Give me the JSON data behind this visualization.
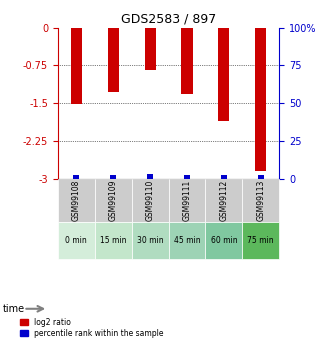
{
  "title": "GDS2583 / 897",
  "samples": [
    "GSM99108",
    "GSM99109",
    "GSM99110",
    "GSM99111",
    "GSM99112",
    "GSM99113"
  ],
  "time_labels": [
    "0 min",
    "15 min",
    "30 min",
    "45 min",
    "60 min",
    "75 min"
  ],
  "log2_ratio": [
    -1.52,
    -1.28,
    -0.85,
    -1.32,
    -1.85,
    -2.85
  ],
  "percentile_rank": [
    2.5,
    2.5,
    3.0,
    2.5,
    2.5,
    2.5
  ],
  "left_ylim": [
    -3,
    0
  ],
  "right_ylim": [
    0,
    100
  ],
  "left_yticks": [
    0,
    -0.75,
    -1.5,
    -2.25,
    -3
  ],
  "right_yticks": [
    0,
    25,
    50,
    75,
    100
  ],
  "bar_width": 0.35,
  "red_color": "#cc0000",
  "blue_color": "#0000cc",
  "grid_color": "#000000",
  "time_bg_colors": [
    "#d4edda",
    "#c3e6cb",
    "#b0dcc0",
    "#9dd3b5",
    "#80c8a0",
    "#5cb85c"
  ],
  "sample_bg_color": "#cccccc",
  "legend_red": "log2 ratio",
  "legend_blue": "percentile rank within the sample"
}
